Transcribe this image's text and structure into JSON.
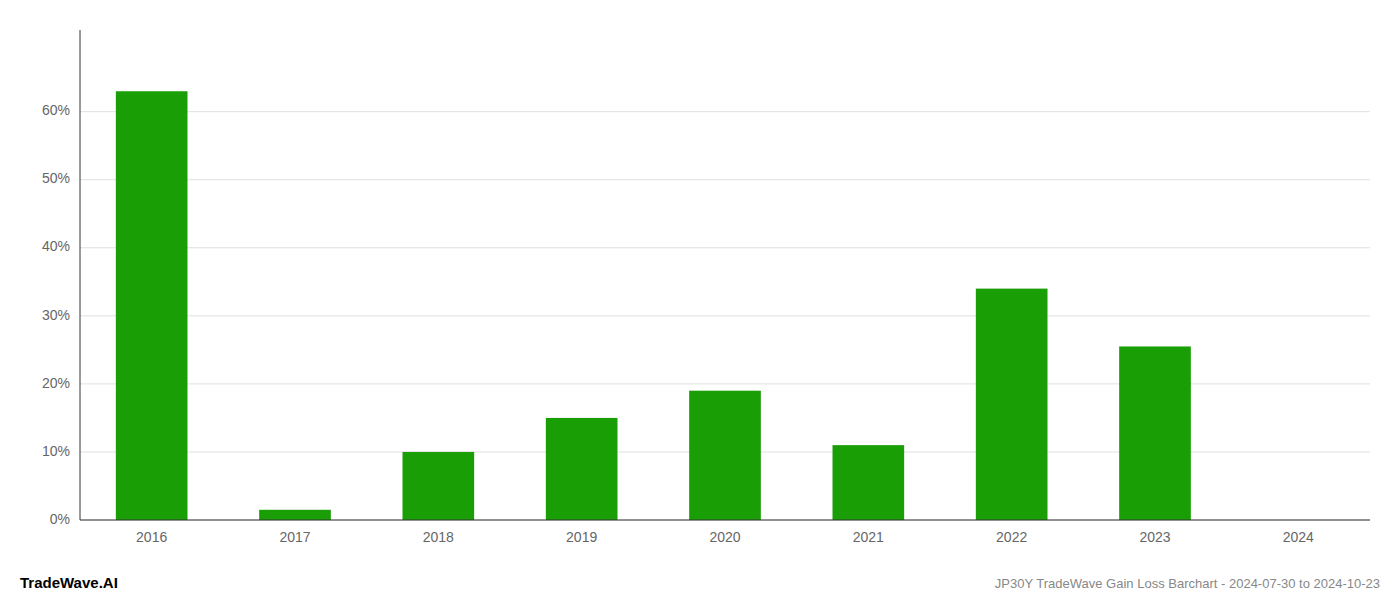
{
  "chart_data": {
    "type": "bar",
    "categories": [
      "2016",
      "2017",
      "2018",
      "2019",
      "2020",
      "2021",
      "2022",
      "2023",
      "2024"
    ],
    "values": [
      0.63,
      0.015,
      0.1,
      0.15,
      0.19,
      0.11,
      0.34,
      0.255,
      0.0
    ],
    "color": "#1a9e06",
    "ylim": [
      0,
      0.72
    ],
    "yticks": [
      {
        "value": 0,
        "label": "0%"
      },
      {
        "value": 0.1,
        "label": "10%"
      },
      {
        "value": 0.2,
        "label": "20%"
      },
      {
        "value": 0.3,
        "label": "30%"
      },
      {
        "value": 0.4,
        "label": "40%"
      },
      {
        "value": 0.5,
        "label": "50%"
      },
      {
        "value": 0.6,
        "label": "60%"
      }
    ],
    "grid": true,
    "annotations": [
      "TradeWave.AI",
      "JP30Y TradeWave Gain Loss Barchart - 2024-07-30 to 2024-10-23"
    ]
  }
}
